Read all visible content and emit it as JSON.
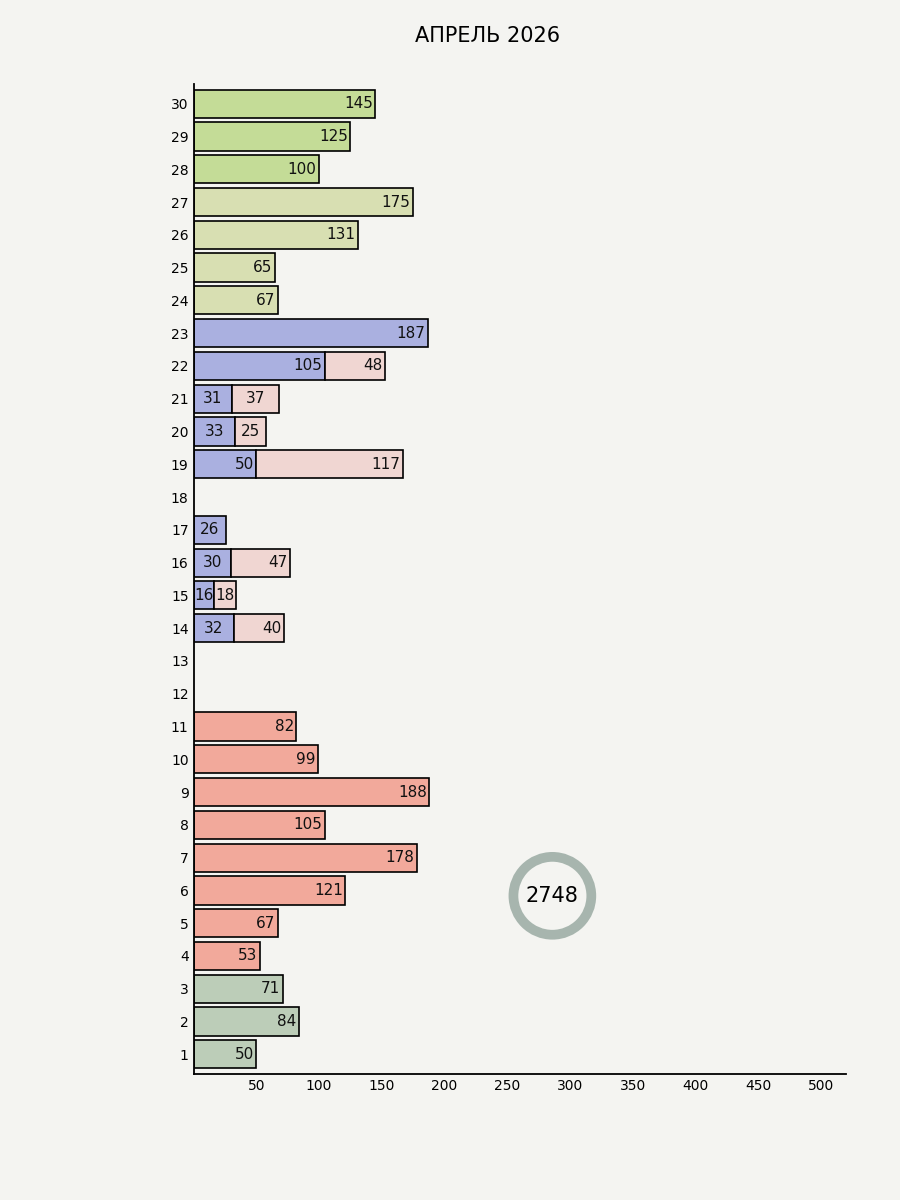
{
  "chart_data": {
    "type": "bar",
    "orientation": "horizontal",
    "stacked": true,
    "title": "АПРЕЛЬ 2026",
    "categories": [
      "1",
      "2",
      "3",
      "4",
      "5",
      "6",
      "7",
      "8",
      "9",
      "10",
      "11",
      "12",
      "13",
      "14",
      "15",
      "16",
      "17",
      "18",
      "19",
      "20",
      "21",
      "22",
      "23",
      "24",
      "25",
      "26",
      "27",
      "28",
      "29",
      "30"
    ],
    "series": [
      {
        "values": [
          50,
          84,
          71,
          53,
          67,
          121,
          178,
          105,
          188,
          99,
          82,
          null,
          null,
          32,
          16,
          30,
          26,
          null,
          50,
          33,
          31,
          105,
          187,
          67,
          65,
          131,
          175,
          100,
          125,
          145
        ],
        "colors": [
          "#bccdb8",
          "#bccdb8",
          "#bccdb8",
          "#f2a99b",
          "#f2a99b",
          "#f2a99b",
          "#f2a99b",
          "#f2a99b",
          "#f2a99b",
          "#f2a99b",
          "#f2a99b",
          null,
          null,
          "#aab0e0",
          "#aab0e0",
          "#aab0e0",
          "#aab0e0",
          null,
          "#aab0e0",
          "#aab0e0",
          "#aab0e0",
          "#aab0e0",
          "#aab0e0",
          "#d8dfb2",
          "#d8dfb2",
          "#d8dfb2",
          "#d8dfb2",
          "#c4dc97",
          "#c4dc97",
          "#c4dc97"
        ]
      },
      {
        "values": [
          null,
          null,
          null,
          null,
          null,
          null,
          null,
          null,
          null,
          null,
          null,
          null,
          null,
          40,
          18,
          47,
          null,
          null,
          117,
          25,
          37,
          48,
          null,
          null,
          null,
          null,
          null,
          null,
          null,
          null
        ],
        "color": "#f0d6d2"
      }
    ],
    "xlim": [
      0,
      520
    ],
    "xticks": [
      50,
      100,
      150,
      200,
      250,
      300,
      350,
      400,
      450,
      500
    ],
    "data_labels": true,
    "grid": false,
    "annotations": [
      {
        "text": "2748"
      }
    ]
  }
}
